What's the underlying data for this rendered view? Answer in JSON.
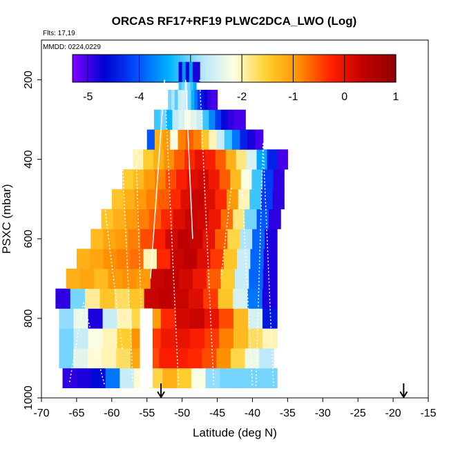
{
  "chart_data": {
    "type": "heatmap",
    "title": "ORCAS RF17+RF19 PLWC2DCA_LWO (Log)",
    "flights_label": "Flts: 17,19",
    "mmdd_label": "MMDD: 0224,0229",
    "xlabel": "Latitude (deg N)",
    "ylabel": "PSXC (mbar)",
    "xlim": [
      -70,
      -15
    ],
    "ylim": [
      1000,
      100
    ],
    "xticks": [
      "-70",
      "-65",
      "-60",
      "-55",
      "-50",
      "-45",
      "-40",
      "-35",
      "-30",
      "-25",
      "-20",
      "-15"
    ],
    "yticks": [
      "200",
      "400",
      "600",
      "800",
      "1000"
    ],
    "colorbar": {
      "range": [
        -5.3,
        1
      ],
      "ticks": [
        "-5",
        "-4",
        "-3",
        "-2",
        "-1",
        "0",
        "1"
      ],
      "colors": [
        "#7f00ff",
        "#0000d0",
        "#0050ff",
        "#00b4ff",
        "#b4e6ff",
        "#ffffe0",
        "#ffd030",
        "#ff9000",
        "#ff2000",
        "#c00000",
        "#900000"
      ]
    },
    "rows": [
      {
        "p": 950,
        "lat0": -67.0,
        "lat1": -36.5,
        "values": [
          -4.9,
          -4.8,
          -4.6,
          -3.8,
          -2.6,
          -2.1,
          -1.6,
          -1.2,
          -1.5,
          -2.2,
          -2.9,
          -3.0,
          -3.0,
          -3.0,
          -3.0
        ]
      },
      {
        "p": 900,
        "lat0": -67.5,
        "lat1": -37.0,
        "values": [
          -3.0,
          -2.4,
          -2.1,
          -2.0,
          -1.7,
          -1.1,
          -0.5,
          -0.2,
          -0.2,
          -0.3,
          -0.5,
          -0.9,
          -1.6,
          -2.3,
          -2.7
        ]
      },
      {
        "p": 850,
        "lat0": -67.5,
        "lat1": -36.5,
        "values": [
          -3.0,
          -2.6,
          -2.2,
          -2.0,
          -1.5,
          -0.9,
          -0.4,
          -0.1,
          0.0,
          -0.2,
          -0.4,
          -0.8,
          -1.3,
          -1.7,
          -2.0
        ]
      },
      {
        "p": 800,
        "lat0": -67.5,
        "lat1": -36.5,
        "values": [
          -2.9,
          -2.3,
          -4.8,
          -2.6,
          -2.0,
          -1.6,
          -1.0,
          -0.3,
          0.2,
          0.3,
          0.0,
          -0.5,
          -1.3,
          -2.5,
          -4.5
        ]
      },
      {
        "p": 750,
        "lat0": -68.0,
        "lat1": -36.5,
        "values": [
          -4.9,
          -3.0,
          -1.9,
          -1.4,
          -1.7,
          -1.4,
          0.3,
          0.4,
          0.3,
          0.1,
          -0.4,
          -1.4,
          -2.5,
          -3.8,
          -4.8
        ]
      },
      {
        "p": 700,
        "lat0": -66.5,
        "lat1": -36.5,
        "values": [
          -1.2,
          -1.1,
          -1.3,
          -1.0,
          -0.9,
          -1.0,
          0.3,
          0.4,
          0.2,
          -0.1,
          -0.6,
          -1.5,
          -2.6,
          -3.9,
          -4.8
        ]
      },
      {
        "p": 650,
        "lat0": -65.0,
        "lat1": -36.5,
        "values": [
          -1.2,
          -1.1,
          -0.9,
          -0.8,
          -0.7,
          -2.0,
          -0.3,
          0.3,
          0.4,
          0.1,
          -0.4,
          -1.4,
          -2.6,
          -3.9,
          -4.8
        ]
      },
      {
        "p": 600,
        "lat0": -63.0,
        "lat1": -36.5,
        "values": [
          -1.3,
          -1.1,
          -1.0,
          -0.8,
          -0.5,
          -0.2,
          0.2,
          0.4,
          0.3,
          0.0,
          -0.6,
          -1.6,
          -2.8,
          -3.9,
          -4.8
        ]
      },
      {
        "p": 550,
        "lat0": -61.5,
        "lat1": -36.0,
        "values": [
          -1.4,
          -1.2,
          -1.0,
          -0.8,
          -0.6,
          -0.3,
          0.1,
          0.3,
          0.2,
          -0.1,
          -0.7,
          -1.8,
          -3.0,
          -4.0,
          -4.9
        ]
      },
      {
        "p": 500,
        "lat0": -60.0,
        "lat1": -35.5,
        "values": [
          -1.4,
          -1.2,
          -1.0,
          -0.8,
          -0.6,
          -0.3,
          0.1,
          0.3,
          0.1,
          -0.3,
          -1.0,
          -2.0,
          -3.2,
          -4.2,
          -4.9
        ]
      },
      {
        "p": 450,
        "lat0": -58.5,
        "lat1": -35.5,
        "values": [
          -1.5,
          -1.3,
          -1.0,
          -0.8,
          -0.5,
          -0.2,
          0.1,
          0.2,
          -0.1,
          -0.6,
          -1.3,
          -2.2,
          -3.2,
          -4.2,
          -4.9
        ]
      },
      {
        "p": 400,
        "lat0": -57.0,
        "lat1": -35.0,
        "values": [
          -2.0,
          -1.5,
          -1.2,
          -0.9,
          -0.6,
          -0.3,
          0.0,
          -0.2,
          -0.6,
          -1.2,
          -1.8,
          -2.5,
          -3.5,
          -4.4,
          -5.0
        ]
      },
      {
        "p": 350,
        "lat0": -55.0,
        "lat1": -38.5,
        "values": [
          -4.0,
          -1.2,
          -1.0,
          -2.2,
          -0.8,
          -0.6,
          -0.8,
          -1.4,
          -2.0,
          -2.6,
          -3.2,
          -3.8,
          -4.4,
          -4.8,
          -5.0
        ]
      },
      {
        "p": 300,
        "lat0": -54.0,
        "lat1": -41.0,
        "values": [
          -3.2,
          -3.0,
          -3.4,
          -2.7,
          -2.5,
          -2.2,
          -2.4,
          -2.6,
          -3.2,
          -3.7,
          -4.2,
          -4.6,
          -4.9,
          -5.0,
          -5.0
        ]
      },
      {
        "p": 250,
        "lat0": -52.0,
        "lat1": -45.0,
        "values": [
          -3.0,
          -2.8,
          -3.1,
          -2.6,
          -2.5,
          -2.6,
          -3.0,
          -3.4,
          -3.8,
          -4.2,
          -4.5,
          -4.7,
          -4.9,
          -5.0,
          -5.0
        ]
      },
      {
        "p": 200,
        "lat0": -50.5,
        "lat1": -48.0,
        "values": [
          -3.2,
          -3.0,
          -2.8,
          -3.0,
          -3.2,
          -3.5
        ]
      },
      {
        "p": 180,
        "lat0": -50.5,
        "lat1": -47.5,
        "values": [
          -4.8,
          -3.6,
          -4.8,
          -3.6,
          -4.8,
          -4.8
        ]
      }
    ],
    "white_gap": {
      "lat0": -56.0,
      "lat1": -54.2,
      "p0": 775,
      "p1": 975
    },
    "arrows_lat": [
      -53.0,
      -18.5
    ]
  }
}
